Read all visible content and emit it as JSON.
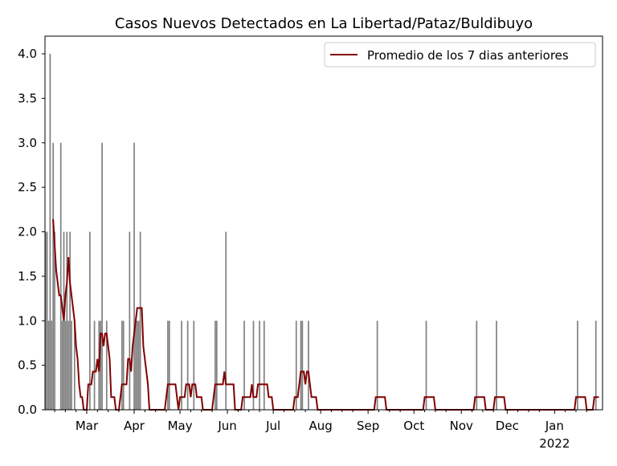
{
  "chart_data": {
    "type": "bar",
    "title": "Casos Nuevos Detectados en La Libertad/Pataz/Buldibuyo",
    "xlabel": "",
    "ylabel": "",
    "date_range": [
      "2021-02-02",
      "2022-01-31"
    ],
    "ylim": [
      0,
      4.2
    ],
    "yticks": [
      "0.0",
      "0.5",
      "1.0",
      "1.5",
      "2.0",
      "2.5",
      "3.0",
      "3.5",
      "4.0"
    ],
    "xticks": [
      {
        "date": "2021-03-01",
        "label": "Mar"
      },
      {
        "date": "2021-04-01",
        "label": "Apr"
      },
      {
        "date": "2021-05-01",
        "label": "May"
      },
      {
        "date": "2021-06-01",
        "label": "Jun"
      },
      {
        "date": "2021-07-01",
        "label": "Jul"
      },
      {
        "date": "2021-08-01",
        "label": "Aug"
      },
      {
        "date": "2021-09-01",
        "label": "Sep"
      },
      {
        "date": "2021-10-01",
        "label": "Oct"
      },
      {
        "date": "2021-11-01",
        "label": "Nov"
      },
      {
        "date": "2021-12-01",
        "label": "Dec"
      },
      {
        "date": "2022-01-01",
        "label": "Jan\n2022"
      }
    ],
    "grid": false,
    "legend": {
      "position": "top-right",
      "entries": [
        "Promedio de los 7 dias anteriores"
      ]
    },
    "colors": {
      "bars": "#808080",
      "line": "#800000"
    },
    "daily_cases_nonzero": [
      [
        "2021-02-02",
        2
      ],
      [
        "2021-02-03",
        2
      ],
      [
        "2021-02-04",
        1
      ],
      [
        "2021-02-05",
        4
      ],
      [
        "2021-02-06",
        1
      ],
      [
        "2021-02-07",
        3
      ],
      [
        "2021-02-08",
        2
      ],
      [
        "2021-02-12",
        3
      ],
      [
        "2021-02-13",
        1
      ],
      [
        "2021-02-14",
        2
      ],
      [
        "2021-02-15",
        1
      ],
      [
        "2021-02-16",
        2
      ],
      [
        "2021-02-17",
        1
      ],
      [
        "2021-02-18",
        2
      ],
      [
        "2021-02-19",
        1
      ],
      [
        "2021-02-21",
        1
      ],
      [
        "2021-03-03",
        2
      ],
      [
        "2021-03-06",
        1
      ],
      [
        "2021-03-09",
        1
      ],
      [
        "2021-03-10",
        1
      ],
      [
        "2021-03-11",
        3
      ],
      [
        "2021-03-14",
        1
      ],
      [
        "2021-03-24",
        1
      ],
      [
        "2021-03-25",
        1
      ],
      [
        "2021-03-29",
        2
      ],
      [
        "2021-04-01",
        3
      ],
      [
        "2021-04-02",
        1
      ],
      [
        "2021-04-03",
        1
      ],
      [
        "2021-04-04",
        1
      ],
      [
        "2021-04-05",
        2
      ],
      [
        "2021-04-23",
        1
      ],
      [
        "2021-04-24",
        1
      ],
      [
        "2021-05-02",
        1
      ],
      [
        "2021-05-06",
        1
      ],
      [
        "2021-05-10",
        1
      ],
      [
        "2021-05-24",
        1
      ],
      [
        "2021-05-25",
        1
      ],
      [
        "2021-05-31",
        2
      ],
      [
        "2021-06-12",
        1
      ],
      [
        "2021-06-18",
        1
      ],
      [
        "2021-06-22",
        1
      ],
      [
        "2021-06-25",
        1
      ],
      [
        "2021-07-16",
        1
      ],
      [
        "2021-07-19",
        1
      ],
      [
        "2021-07-20",
        1
      ],
      [
        "2021-07-24",
        1
      ],
      [
        "2021-09-07",
        1
      ],
      [
        "2021-10-09",
        1
      ],
      [
        "2021-11-11",
        1
      ],
      [
        "2021-11-24",
        1
      ],
      [
        "2022-01-16",
        1
      ],
      [
        "2022-01-28",
        1
      ]
    ]
  }
}
